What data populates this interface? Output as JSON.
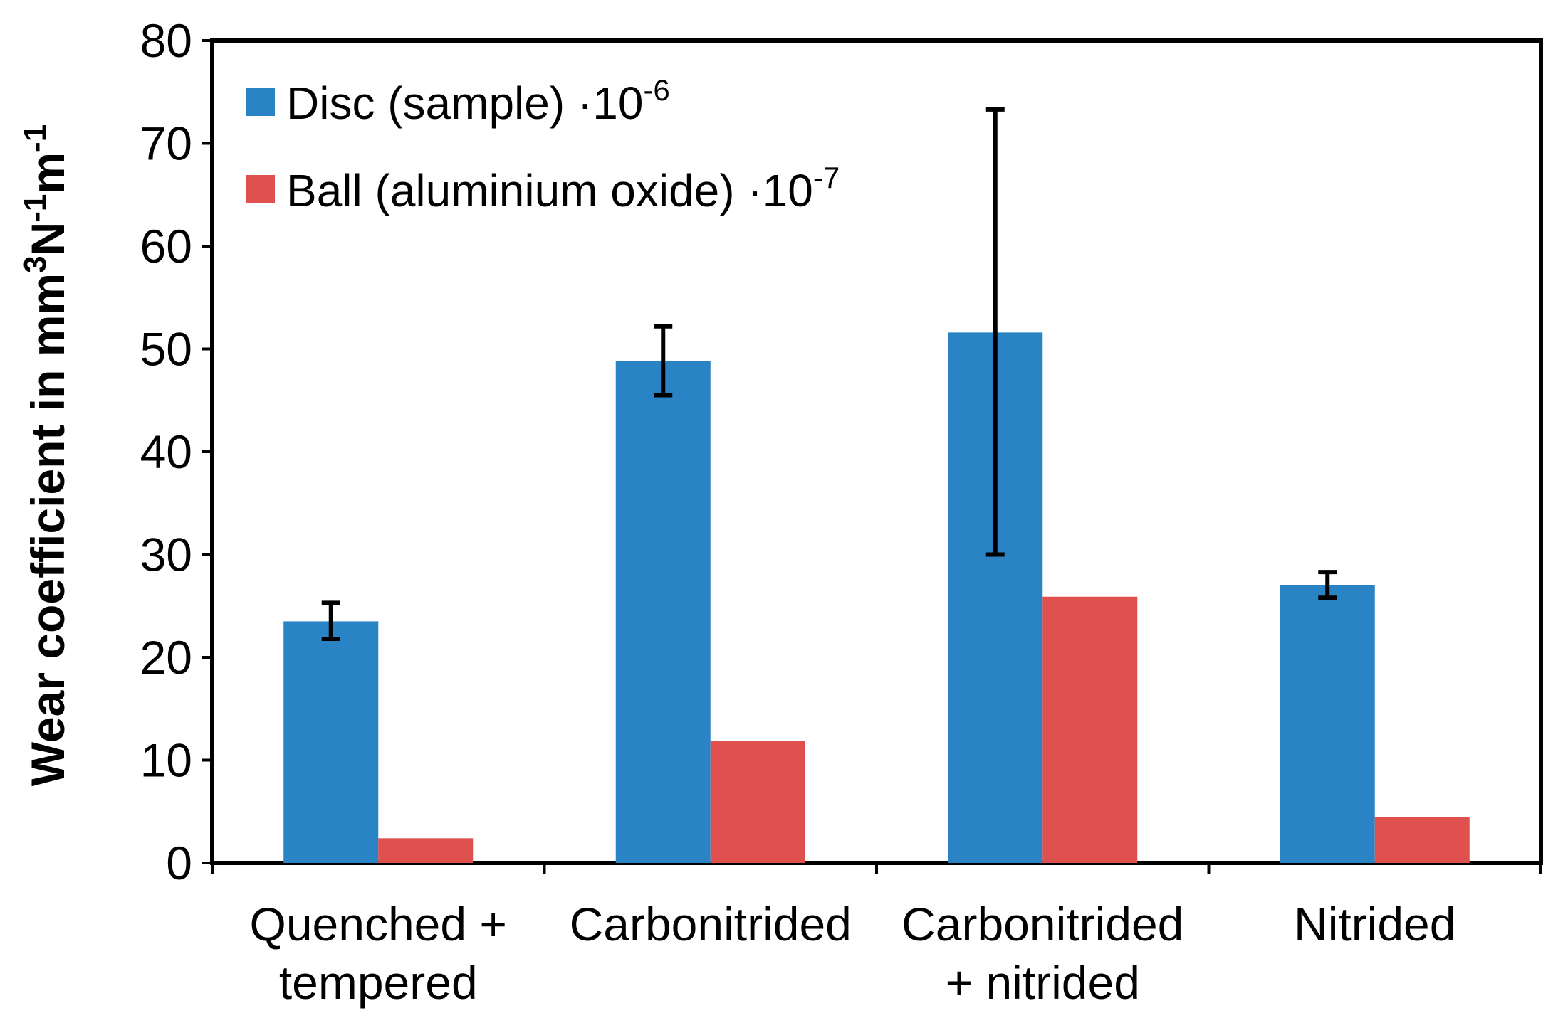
{
  "chart_data": {
    "type": "bar",
    "title": "",
    "xlabel": "",
    "ylabel": "Wear coefficient in mm",
    "ylabel_parts": [
      {
        "text": "Wear coefficient in mm",
        "sup": false
      },
      {
        "text": "3",
        "sup": true
      },
      {
        "text": "N",
        "sup": false
      },
      {
        "text": "-1",
        "sup": true
      },
      {
        "text": "m",
        "sup": false
      },
      {
        "text": "-1",
        "sup": true
      }
    ],
    "ylim": [
      0,
      80
    ],
    "yticks": [
      0,
      10,
      20,
      30,
      40,
      50,
      60,
      70,
      80
    ],
    "grid": false,
    "legend_position": "top-left",
    "categories": [
      [
        "Quenched +",
        "tempered"
      ],
      [
        "Carbonitrided"
      ],
      [
        "Carbonitrided",
        "+ nitrided"
      ],
      [
        "Nitrided"
      ]
    ],
    "series": [
      {
        "name": "Disc (sample) ·10",
        "name_sup": "-6",
        "color": "#2a83c4",
        "values": [
          23.5,
          48.8,
          51.6,
          27.0
        ],
        "error_low": [
          21.8,
          45.5,
          30.0,
          25.8
        ],
        "error_high": [
          25.3,
          52.2,
          73.3,
          28.3
        ]
      },
      {
        "name": "Ball (aluminium oxide) ·10",
        "name_sup": "-7",
        "color": "#de514f",
        "values": [
          2.4,
          11.9,
          25.9,
          4.5
        ]
      }
    ]
  }
}
